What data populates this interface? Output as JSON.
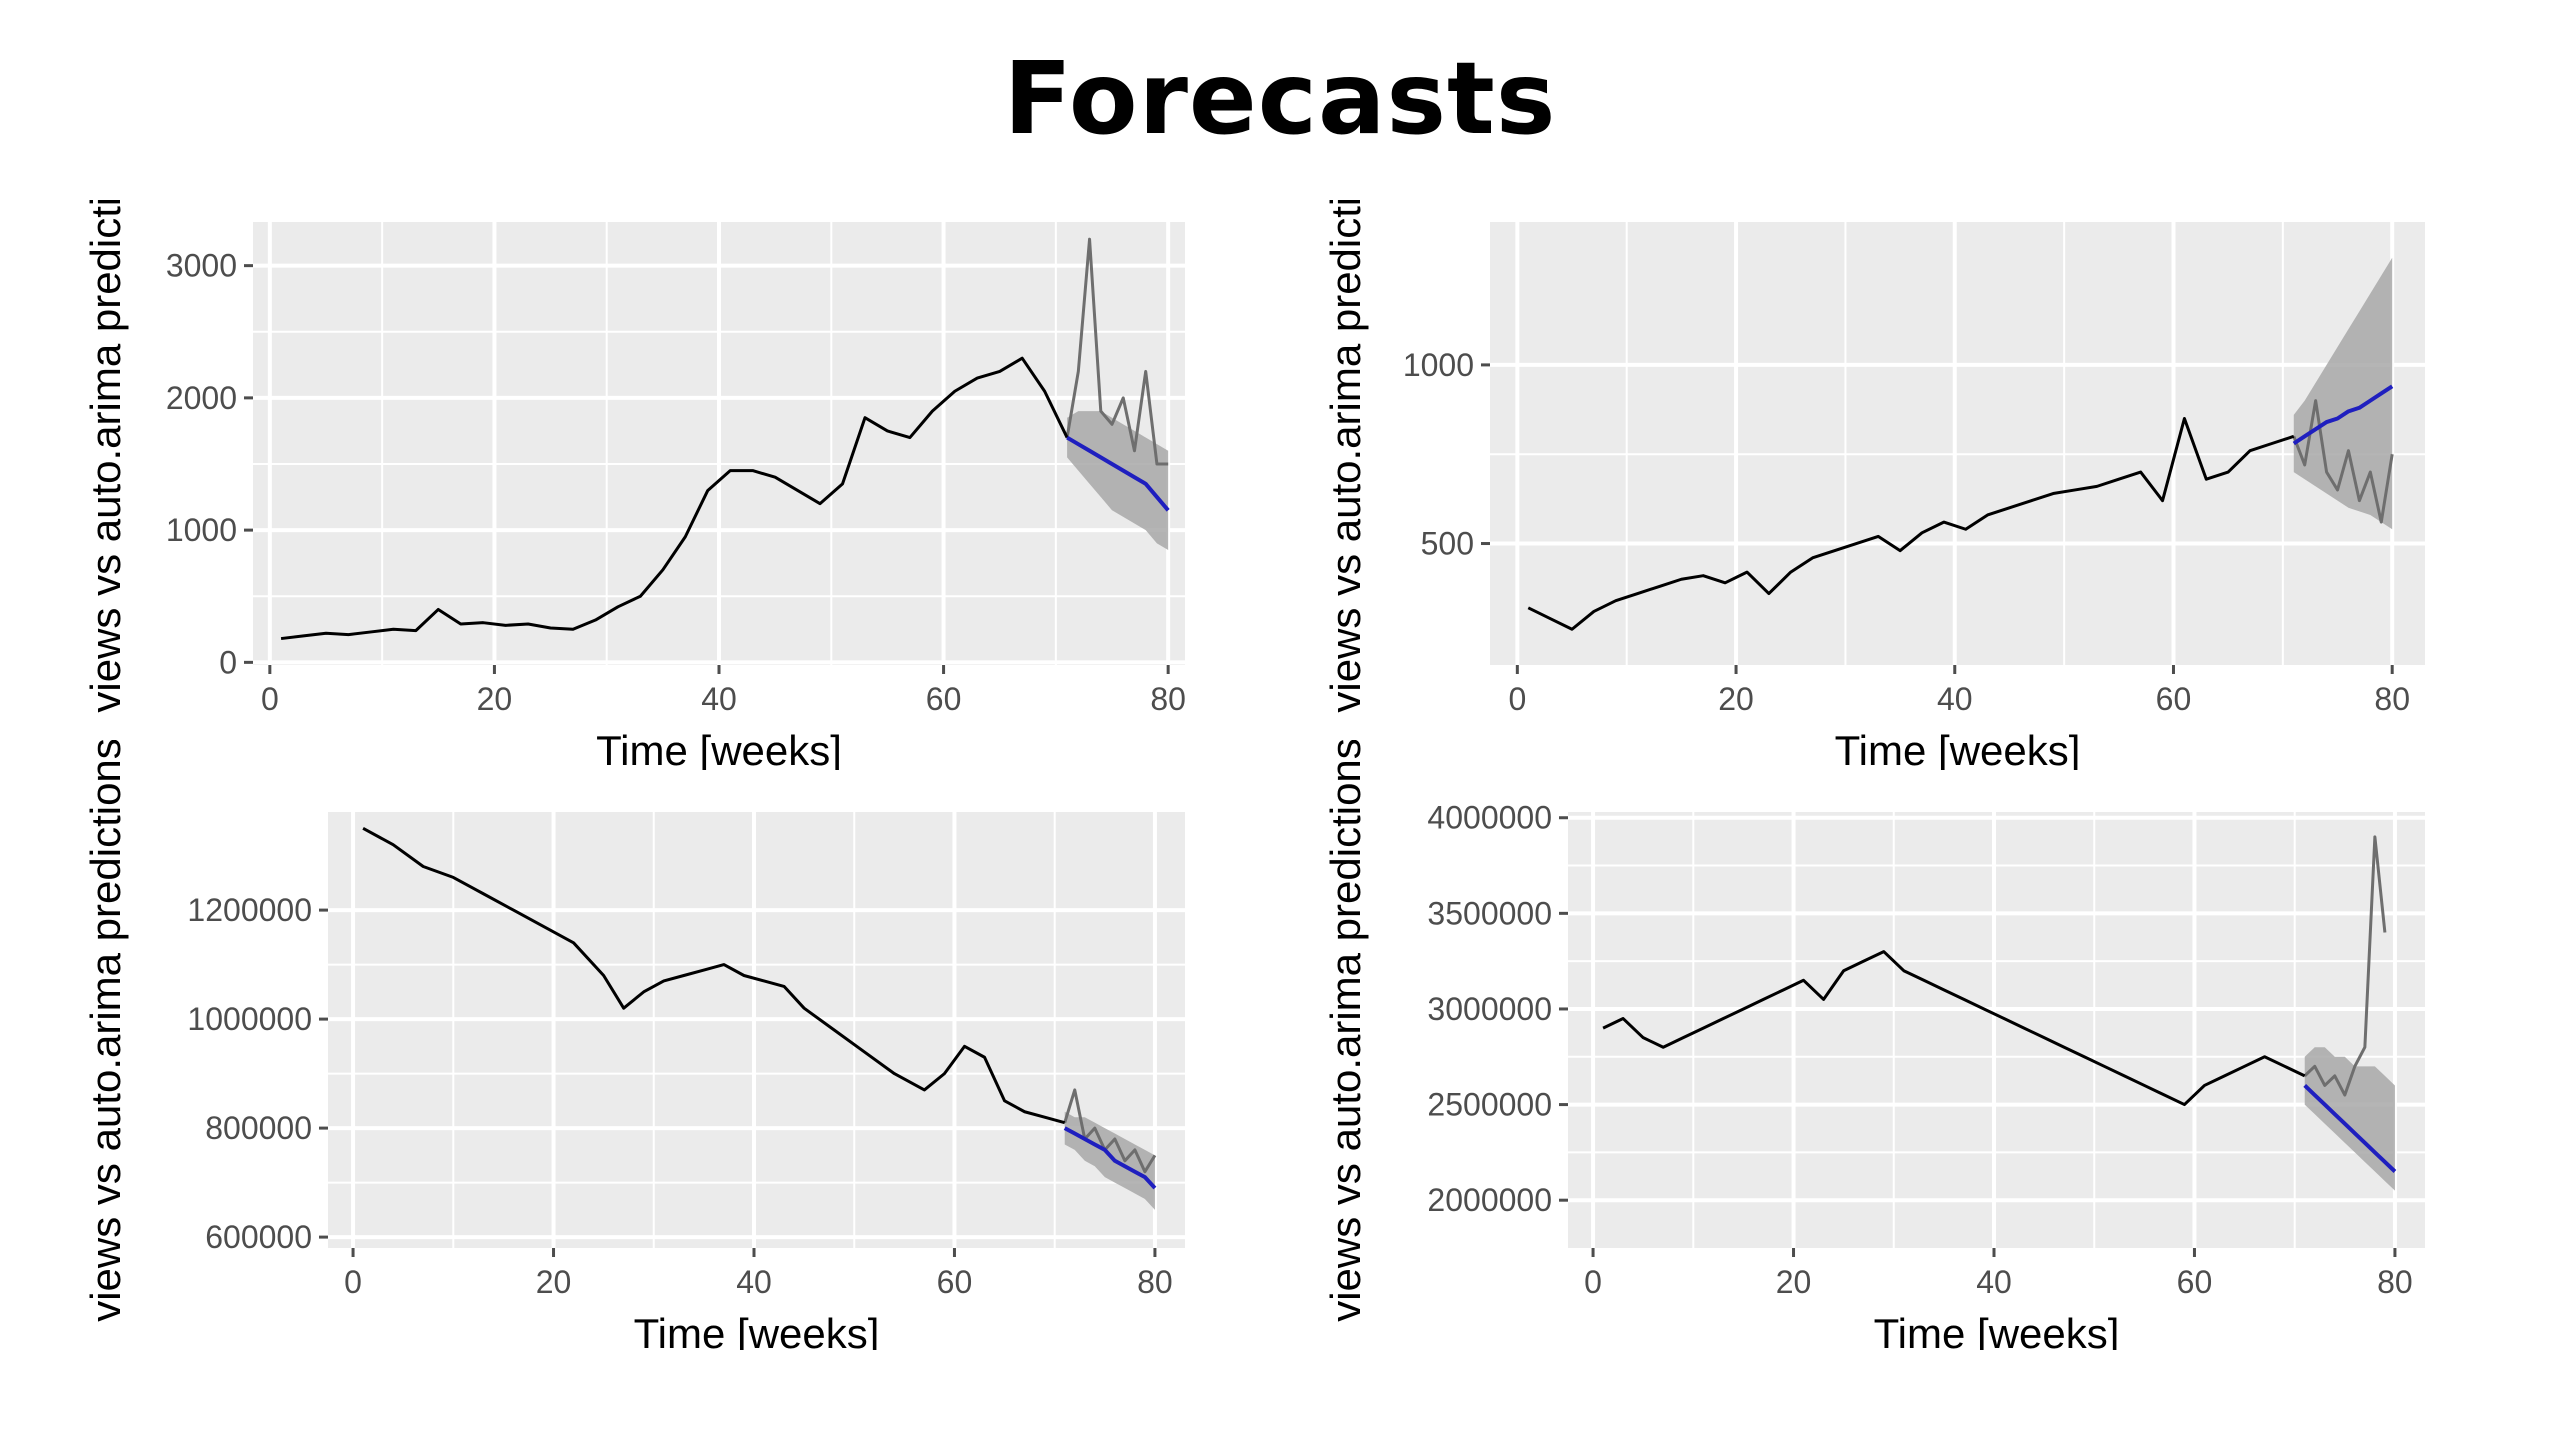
{
  "slide": {
    "title": "Forecasts"
  },
  "colors": {
    "panel": "#ebebeb",
    "grid": "#ffffff",
    "observed": "#000000",
    "actual_holdout": "#6e6e6e",
    "forecast": "#1f1fbf",
    "interval": "#a8a8a8",
    "tick": "#4d4d4d"
  },
  "chart_data": [
    {
      "type": "line",
      "xlabel": "Time [weeks]",
      "ylabel": "views vs auto.arima predictio",
      "xlim": [
        -1.5,
        81.5
      ],
      "ylim": [
        -20,
        3330
      ],
      "xticks": [
        0,
        20,
        40,
        60,
        80
      ],
      "yticks": [
        0,
        1000,
        2000,
        3000
      ],
      "observed": {
        "x": [
          1,
          3,
          5,
          7,
          9,
          11,
          13,
          15,
          17,
          19,
          21,
          23,
          25,
          27,
          29,
          31,
          33,
          35,
          37,
          39,
          41,
          43,
          45,
          47,
          49,
          51,
          53,
          55,
          57,
          59,
          61,
          63,
          65,
          67,
          69,
          71
        ],
        "y": [
          180,
          200,
          220,
          210,
          230,
          250,
          240,
          400,
          290,
          300,
          280,
          290,
          260,
          250,
          320,
          420,
          500,
          700,
          950,
          1300,
          1450,
          1450,
          1400,
          1300,
          1200,
          1350,
          1850,
          1750,
          1700,
          1900,
          2050,
          2150,
          2200,
          2300,
          2050,
          1700
        ]
      },
      "holdout_actual": {
        "x": [
          71,
          72,
          73,
          74,
          75,
          76,
          77,
          78,
          79,
          80
        ],
        "y": [
          1700,
          2200,
          3200,
          1900,
          1800,
          2000,
          1600,
          2200,
          1500,
          1500
        ]
      },
      "forecast": {
        "x": [
          71,
          72,
          73,
          74,
          75,
          76,
          77,
          78,
          79,
          80
        ],
        "y": [
          1700,
          1650,
          1600,
          1550,
          1500,
          1450,
          1400,
          1350,
          1250,
          1150
        ],
        "lower": [
          1550,
          1450,
          1350,
          1250,
          1150,
          1100,
          1050,
          1000,
          900,
          850
        ],
        "upper": [
          1850,
          1900,
          1900,
          1900,
          1850,
          1800,
          1750,
          1700,
          1650,
          1600
        ]
      }
    },
    {
      "type": "line",
      "xlabel": "Time [weeks]",
      "ylabel": "views vs auto.arima predictio",
      "xlim": [
        -2.5,
        83
      ],
      "ylim": [
        160,
        1400
      ],
      "xticks": [
        0,
        20,
        40,
        60,
        80
      ],
      "yticks": [
        500,
        1000
      ],
      "observed": {
        "x": [
          1,
          3,
          5,
          7,
          9,
          11,
          13,
          15,
          17,
          19,
          21,
          23,
          25,
          27,
          29,
          31,
          33,
          35,
          37,
          39,
          41,
          43,
          45,
          47,
          49,
          51,
          53,
          55,
          57,
          59,
          61,
          63,
          65,
          67,
          69,
          71
        ],
        "y": [
          320,
          290,
          260,
          310,
          340,
          360,
          380,
          400,
          410,
          390,
          420,
          360,
          420,
          460,
          480,
          500,
          520,
          480,
          530,
          560,
          540,
          580,
          600,
          620,
          640,
          650,
          660,
          680,
          700,
          620,
          850,
          680,
          700,
          760,
          780,
          800
        ]
      },
      "holdout_actual": {
        "x": [
          71,
          72,
          73,
          74,
          75,
          76,
          77,
          78,
          79,
          80
        ],
        "y": [
          800,
          720,
          900,
          700,
          650,
          760,
          620,
          700,
          560,
          750
        ]
      },
      "forecast": {
        "x": [
          71,
          72,
          73,
          74,
          75,
          76,
          77,
          78,
          79,
          80
        ],
        "y": [
          780,
          800,
          820,
          840,
          850,
          870,
          880,
          900,
          920,
          940
        ],
        "lower": [
          700,
          680,
          660,
          640,
          620,
          600,
          590,
          580,
          560,
          540
        ],
        "upper": [
          860,
          900,
          950,
          1000,
          1050,
          1100,
          1150,
          1200,
          1250,
          1300
        ]
      }
    },
    {
      "type": "line",
      "xlabel": "Time [weeks]",
      "ylabel": "views vs auto.arima predictions",
      "xlim": [
        -2.5,
        83
      ],
      "ylim": [
        580000,
        1380000
      ],
      "xticks": [
        0,
        20,
        40,
        60,
        80
      ],
      "yticks": [
        600000,
        800000,
        1000000,
        1200000
      ],
      "observed": {
        "x": [
          1,
          4,
          7,
          10,
          13,
          16,
          19,
          22,
          25,
          27,
          29,
          31,
          33,
          35,
          37,
          39,
          41,
          43,
          45,
          48,
          51,
          54,
          57,
          59,
          61,
          63,
          65,
          67,
          69,
          71
        ],
        "y": [
          1350000,
          1320000,
          1280000,
          1260000,
          1230000,
          1200000,
          1170000,
          1140000,
          1080000,
          1020000,
          1050000,
          1070000,
          1080000,
          1090000,
          1100000,
          1080000,
          1070000,
          1060000,
          1020000,
          980000,
          940000,
          900000,
          870000,
          900000,
          950000,
          930000,
          850000,
          830000,
          820000,
          810000
        ]
      },
      "holdout_actual": {
        "x": [
          71,
          72,
          73,
          74,
          75,
          76,
          77,
          78,
          79,
          80
        ],
        "y": [
          810000,
          870000,
          780000,
          800000,
          760000,
          780000,
          740000,
          760000,
          720000,
          750000
        ]
      },
      "forecast": {
        "x": [
          71,
          72,
          73,
          74,
          75,
          76,
          77,
          78,
          79,
          80
        ],
        "y": [
          800000,
          790000,
          780000,
          770000,
          760000,
          740000,
          730000,
          720000,
          710000,
          690000
        ],
        "lower": [
          770000,
          760000,
          740000,
          730000,
          710000,
          700000,
          690000,
          680000,
          670000,
          650000
        ],
        "upper": [
          830000,
          820000,
          820000,
          810000,
          800000,
          790000,
          780000,
          770000,
          760000,
          750000
        ]
      }
    },
    {
      "type": "line",
      "xlabel": "Time [weeks]",
      "ylabel": "views vs auto.arima predictions",
      "xlim": [
        -2.5,
        83
      ],
      "ylim": [
        1750000,
        4030000
      ],
      "xticks": [
        0,
        20,
        40,
        60,
        80
      ],
      "yticks": [
        2000000,
        2500000,
        3000000,
        3500000,
        4000000
      ],
      "observed": {
        "x": [
          1,
          3,
          5,
          7,
          9,
          11,
          13,
          15,
          17,
          19,
          21,
          23,
          25,
          27,
          29,
          31,
          33,
          35,
          37,
          39,
          41,
          43,
          45,
          47,
          49,
          51,
          53,
          55,
          57,
          59,
          61,
          63,
          65,
          67,
          69,
          71
        ],
        "y": [
          2900000,
          2950000,
          2850000,
          2800000,
          2850000,
          2900000,
          2950000,
          3000000,
          3050000,
          3100000,
          3150000,
          3050000,
          3200000,
          3250000,
          3300000,
          3200000,
          3150000,
          3100000,
          3050000,
          3000000,
          2950000,
          2900000,
          2850000,
          2800000,
          2750000,
          2700000,
          2650000,
          2600000,
          2550000,
          2500000,
          2600000,
          2650000,
          2700000,
          2750000,
          2700000,
          2650000
        ]
      },
      "holdout_actual": {
        "x": [
          71,
          72,
          73,
          74,
          75,
          76,
          77,
          78,
          79
        ],
        "y": [
          2650000,
          2700000,
          2600000,
          2650000,
          2550000,
          2700000,
          2800000,
          3900000,
          3400000
        ]
      },
      "forecast": {
        "x": [
          71,
          72,
          73,
          74,
          75,
          76,
          77,
          78,
          79,
          80
        ],
        "y": [
          2600000,
          2550000,
          2500000,
          2450000,
          2400000,
          2350000,
          2300000,
          2250000,
          2200000,
          2150000
        ],
        "lower": [
          2500000,
          2450000,
          2400000,
          2350000,
          2300000,
          2250000,
          2200000,
          2150000,
          2100000,
          2050000
        ],
        "upper": [
          2750000,
          2800000,
          2800000,
          2750000,
          2750000,
          2700000,
          2700000,
          2700000,
          2650000,
          2600000
        ]
      }
    }
  ]
}
